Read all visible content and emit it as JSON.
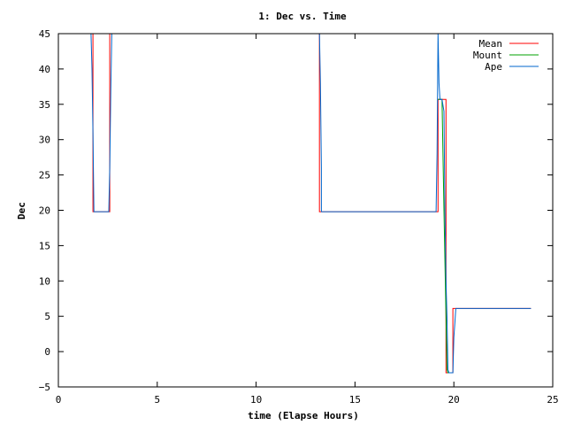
{
  "chart_data": {
    "type": "line",
    "title": "1: Dec vs. Time",
    "xlabel": "time (Elapse Hours)",
    "ylabel": "Dec",
    "xlim": [
      0,
      25
    ],
    "ylim": [
      -5,
      45
    ],
    "xticks": [
      0,
      5,
      10,
      15,
      20,
      25
    ],
    "yticks": [
      -5,
      0,
      5,
      10,
      15,
      20,
      25,
      30,
      35,
      40,
      45
    ],
    "grid": false,
    "legend_position": "top-right",
    "series": [
      {
        "name": "Mean",
        "color": "#ff0000",
        "x": [
          0,
          1.75,
          1.75,
          2.6,
          2.6,
          7.5,
          13.2,
          13.2,
          19.2,
          19.2,
          19.6,
          19.6,
          19.95,
          19.95,
          23.9
        ],
        "y": [
          45,
          45,
          19.8,
          19.8,
          45,
          45,
          45,
          19.8,
          19.8,
          35.7,
          35.7,
          -3,
          -3,
          6.1,
          6.1
        ]
      },
      {
        "name": "Mount",
        "color": "#00a000",
        "x": [
          19.2,
          19.4,
          19.5,
          19.6,
          19.65,
          19.7,
          19.95
        ],
        "y": [
          35.7,
          35.7,
          20,
          5,
          -2.5,
          -3,
          -3
        ]
      },
      {
        "name": "Ape",
        "color": "#0066cc",
        "x": [
          0,
          1.65,
          1.7,
          1.75,
          1.8,
          1.8,
          2.55,
          2.6,
          2.65,
          2.7,
          2.75,
          13.2,
          13.25,
          13.3,
          13.3,
          19.1,
          19.15,
          19.2,
          19.25,
          19.3,
          19.4,
          19.5,
          19.55,
          19.6,
          19.65,
          19.7,
          19.75,
          19.95,
          20.0,
          20.05,
          20.1,
          23.9
        ],
        "y": [
          45,
          45,
          40,
          31,
          20,
          19.8,
          19.8,
          26,
          37,
          45,
          45,
          45,
          38,
          26,
          19.8,
          19.8,
          28,
          45,
          38,
          35.7,
          35.7,
          34,
          20,
          10,
          5,
          -2.5,
          -3,
          -3,
          2,
          4,
          6.1,
          6.1
        ]
      }
    ]
  }
}
